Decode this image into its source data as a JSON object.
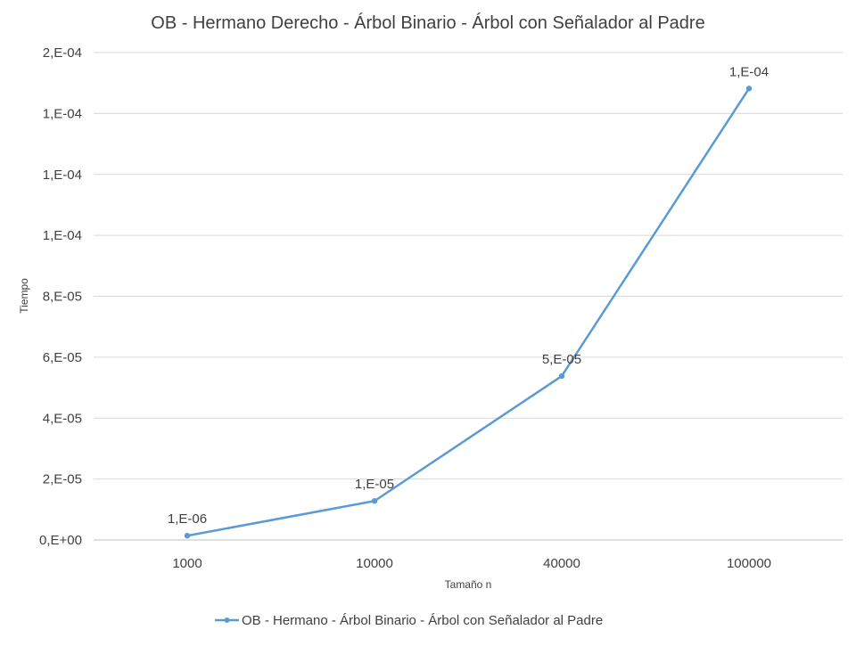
{
  "chart_data": {
    "type": "line",
    "title": "OB - Hermano Derecho - Árbol Binario - Árbol con Señalador al Padre",
    "xlabel": "Tamaño n",
    "ylabel": "Tiempo",
    "categories": [
      "1000",
      "10000",
      "40000",
      "100000"
    ],
    "y_ticks": [
      "0,E+00",
      "2,E-05",
      "4,E-05",
      "6,E-05",
      "8,E-05",
      "1,E-04",
      "1,E-04",
      "1,E-04",
      "2,E-04"
    ],
    "ylim": [
      0,
      0.00016
    ],
    "grid": true,
    "legend_position": "bottom",
    "series": [
      {
        "name": "OB - Hermano - Árbol Binario - Árbol con Señalador al Padre",
        "color": "#5b9bd5",
        "values": [
          1.4e-06,
          1.28e-05,
          5.38e-05,
          0.0001482
        ],
        "data_labels": [
          "1,E-06",
          "1,E-05",
          "5,E-05",
          "1,E-04"
        ]
      }
    ]
  }
}
